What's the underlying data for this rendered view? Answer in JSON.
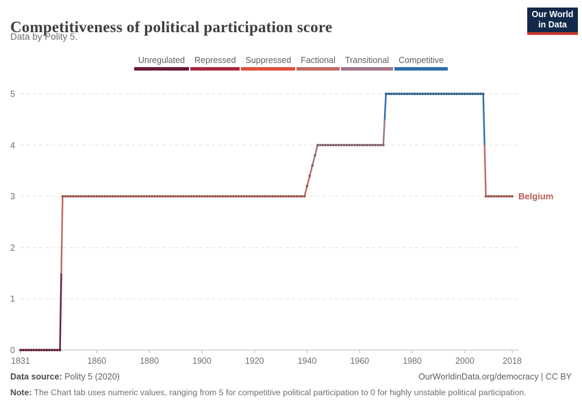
{
  "header": {
    "title": "Competitiveness of political participation score",
    "subtitle": "Data by Polity 5.",
    "logo": {
      "line1": "Our World",
      "line2": "in Data",
      "bg_color": "#12294b",
      "accent_color": "#c73a2c"
    }
  },
  "chart_data": {
    "type": "line",
    "title": "Competitiveness of political participation score",
    "entity": "Belgium",
    "x": {
      "min": 1831,
      "max": 2018,
      "ticks": [
        1831,
        1860,
        1880,
        1900,
        1920,
        1940,
        1960,
        1980,
        2000,
        2018
      ]
    },
    "y": {
      "min": 0,
      "max": 5,
      "ticks": [
        0,
        1,
        2,
        3,
        4,
        5
      ]
    },
    "grid": true,
    "legend_position": "top",
    "legend": [
      {
        "value": 0,
        "label": "Unregulated",
        "color": "#6b1a33"
      },
      {
        "value": 1,
        "label": "Repressed",
        "color": "#a9263d"
      },
      {
        "value": 2,
        "label": "Suppressed",
        "color": "#e1513b"
      },
      {
        "value": 3,
        "label": "Factional",
        "color": "#bf6b64"
      },
      {
        "value": 4,
        "label": "Transitional",
        "color": "#9f7589"
      },
      {
        "value": 5,
        "label": "Competitive",
        "color": "#2e6fab"
      }
    ],
    "series": [
      {
        "name": "Belgium",
        "label_color": "#b85c55",
        "points": [
          [
            1831,
            0
          ],
          [
            1846,
            0
          ],
          [
            1847,
            3
          ],
          [
            1939,
            3
          ],
          [
            1944,
            4
          ],
          [
            1969,
            4
          ],
          [
            1970,
            5
          ],
          [
            2007,
            5
          ],
          [
            2008,
            3
          ],
          [
            2018,
            3
          ]
        ]
      }
    ]
  },
  "footer": {
    "sources_label": "Data source:",
    "sources_value": "Polity 5 (2020)",
    "attribution": "OurWorldinData.org/democracy | CC BY",
    "note_label": "Note:",
    "note_value": "The Chart tab uses numeric values, ranging from 5 for competitive political participation to 0 for highly unstable political participation."
  }
}
